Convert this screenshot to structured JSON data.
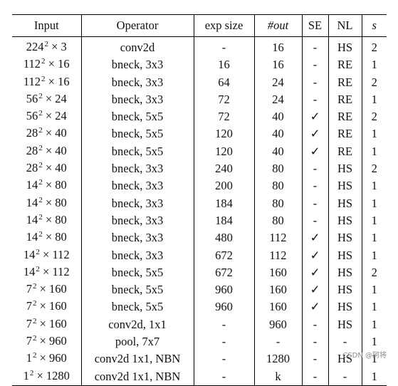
{
  "table": {
    "headers": {
      "input": "Input",
      "operator": "Operator",
      "exp_size": "exp size",
      "out": "#out",
      "se": "SE",
      "nl": "NL",
      "s": "s"
    },
    "rows": [
      {
        "input_base": "224",
        "input_sup": "2",
        "input_rest": " × 3",
        "operator": "conv2d",
        "exp_size": "-",
        "out": "16",
        "se": "-",
        "nl": "HS",
        "s": "2"
      },
      {
        "input_base": "112",
        "input_sup": "2",
        "input_rest": " × 16",
        "operator": "bneck, 3x3",
        "exp_size": "16",
        "out": "16",
        "se": "-",
        "nl": "RE",
        "s": "1"
      },
      {
        "input_base": "112",
        "input_sup": "2",
        "input_rest": " × 16",
        "operator": "bneck, 3x3",
        "exp_size": "64",
        "out": "24",
        "se": "-",
        "nl": "RE",
        "s": "2"
      },
      {
        "input_base": "56",
        "input_sup": "2",
        "input_rest": " × 24",
        "operator": "bneck, 3x3",
        "exp_size": "72",
        "out": "24",
        "se": "-",
        "nl": "RE",
        "s": "1"
      },
      {
        "input_base": "56",
        "input_sup": "2",
        "input_rest": " × 24",
        "operator": "bneck, 5x5",
        "exp_size": "72",
        "out": "40",
        "se": "✓",
        "nl": "RE",
        "s": "2"
      },
      {
        "input_base": "28",
        "input_sup": "2",
        "input_rest": " × 40",
        "operator": "bneck, 5x5",
        "exp_size": "120",
        "out": "40",
        "se": "✓",
        "nl": "RE",
        "s": "1"
      },
      {
        "input_base": "28",
        "input_sup": "2",
        "input_rest": " × 40",
        "operator": "bneck, 5x5",
        "exp_size": "120",
        "out": "40",
        "se": "✓",
        "nl": "RE",
        "s": "1"
      },
      {
        "input_base": "28",
        "input_sup": "2",
        "input_rest": " × 40",
        "operator": "bneck, 3x3",
        "exp_size": "240",
        "out": "80",
        "se": "-",
        "nl": "HS",
        "s": "2"
      },
      {
        "input_base": "14",
        "input_sup": "2",
        "input_rest": " × 80",
        "operator": "bneck, 3x3",
        "exp_size": "200",
        "out": "80",
        "se": "-",
        "nl": "HS",
        "s": "1"
      },
      {
        "input_base": "14",
        "input_sup": "2",
        "input_rest": " × 80",
        "operator": "bneck, 3x3",
        "exp_size": "184",
        "out": "80",
        "se": "-",
        "nl": "HS",
        "s": "1"
      },
      {
        "input_base": "14",
        "input_sup": "2",
        "input_rest": " × 80",
        "operator": "bneck, 3x3",
        "exp_size": "184",
        "out": "80",
        "se": "-",
        "nl": "HS",
        "s": "1"
      },
      {
        "input_base": "14",
        "input_sup": "2",
        "input_rest": " × 80",
        "operator": "bneck, 3x3",
        "exp_size": "480",
        "out": "112",
        "se": "✓",
        "nl": "HS",
        "s": "1"
      },
      {
        "input_base": "14",
        "input_sup": "2",
        "input_rest": " × 112",
        "operator": "bneck, 3x3",
        "exp_size": "672",
        "out": "112",
        "se": "✓",
        "nl": "HS",
        "s": "1"
      },
      {
        "input_base": "14",
        "input_sup": "2",
        "input_rest": " × 112",
        "operator": "bneck, 5x5",
        "exp_size": "672",
        "out": "160",
        "se": "✓",
        "nl": "HS",
        "s": "2"
      },
      {
        "input_base": "7",
        "input_sup": "2",
        "input_rest": " × 160",
        "operator": "bneck, 5x5",
        "exp_size": "960",
        "out": "160",
        "se": "✓",
        "nl": "HS",
        "s": "1"
      },
      {
        "input_base": "7",
        "input_sup": "2",
        "input_rest": " × 160",
        "operator": "bneck, 5x5",
        "exp_size": "960",
        "out": "160",
        "se": "✓",
        "nl": "HS",
        "s": "1"
      },
      {
        "input_base": "7",
        "input_sup": "2",
        "input_rest": " × 160",
        "operator": "conv2d, 1x1",
        "exp_size": "-",
        "out": "960",
        "se": "-",
        "nl": "HS",
        "s": "1"
      },
      {
        "input_base": "7",
        "input_sup": "2",
        "input_rest": " × 960",
        "operator": "pool, 7x7",
        "exp_size": "-",
        "out": "-",
        "se": "-",
        "nl": "-",
        "s": "1"
      },
      {
        "input_base": "1",
        "input_sup": "2",
        "input_rest": " × 960",
        "operator": "conv2d 1x1, NBN",
        "exp_size": "-",
        "out": "1280",
        "se": "-",
        "nl": "HS",
        "s": "1"
      },
      {
        "input_base": "1",
        "input_sup": "2",
        "input_rest": " × 1280",
        "operator": "conv2d 1x1, NBN",
        "exp_size": "-",
        "out": "k",
        "se": "-",
        "nl": "-",
        "s": "1"
      }
    ]
  },
  "watermark": "CSDN @阿将"
}
